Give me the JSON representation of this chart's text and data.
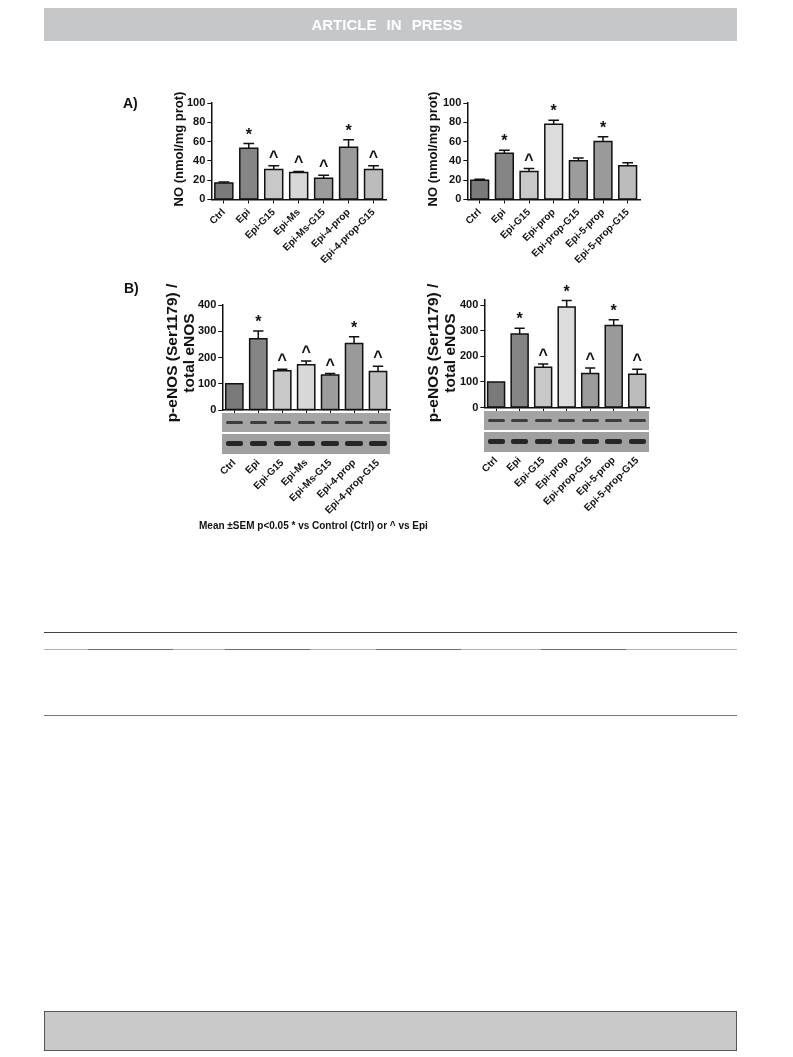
{
  "chart_data": [
    {
      "type": "bar",
      "title": "A)",
      "ylabel": "NO (nmol/mg prot)",
      "categories": [
        "Ctrl",
        "Epi",
        "Epi-G15",
        "Epi-Ms",
        "Epi-Ms-G15",
        "Epi-4-prop",
        "Epi-4-prop-G15"
      ],
      "values": [
        17,
        53,
        31,
        28,
        22,
        54,
        31
      ],
      "errors": [
        1,
        5,
        4,
        1,
        3,
        8,
        4
      ],
      "colors": [
        "#7a7a7a",
        "#858585",
        "#c8c8c8",
        "#d8d8d8",
        "#9c9c9c",
        "#9a9a9a",
        "#bcbcbc"
      ],
      "ylim": [
        0,
        100
      ],
      "yticks": [
        0,
        20,
        40,
        60,
        80,
        100
      ],
      "annotations": [
        "ARTICLE IN PRESS",
        {
          "text": "*",
          "x": "Epi",
          "y": 58
        },
        {
          "text": "^",
          "x": "Epi-G15",
          "y": 35
        },
        {
          "text": "^",
          "x": "Epi-Ms",
          "y": 29
        },
        {
          "text": "^",
          "x": "Epi-Ms-G15",
          "y": 25
        },
        {
          "text": "*",
          "x": "Epi-4-prop",
          "y": 62
        },
        {
          "text": "^",
          "x": "Epi-4-prop-G15",
          "y": 35
        }
      ]
    },
    {
      "type": "bar",
      "ylabel": "NO (nmol/mg prot)",
      "categories": [
        "Ctrl",
        "Epi",
        "Epi-G15",
        "Epi-prop",
        "Epi-prop-G15",
        "Epi-5-prop",
        "Epi-5-prop-G15"
      ],
      "values": [
        20,
        48,
        29,
        78,
        40,
        60,
        35
      ],
      "errors": [
        1,
        3,
        3,
        4,
        3,
        5,
        3
      ],
      "colors": [
        "#7a7a7a",
        "#858585",
        "#c8c8c8",
        "#dcdcdc",
        "#9c9c9c",
        "#9a9a9a",
        "#bcbcbc"
      ],
      "ylim": [
        0,
        100
      ],
      "yticks": [
        0,
        20,
        40,
        60,
        80,
        100
      ],
      "annotations": [
        {
          "text": "*",
          "x": "Epi",
          "y": 51
        },
        {
          "text": "^",
          "x": "Epi-G15",
          "y": 32
        },
        {
          "text": "*",
          "x": "Epi-prop",
          "y": 82
        },
        {
          "text": "*",
          "x": "Epi-5-prop",
          "y": 65
        }
      ]
    },
    {
      "type": "bar",
      "title": "B)",
      "ylabel": "p-eNOS (Ser1179) / total eNOS",
      "categories": [
        "Ctrl",
        "Epi",
        "Epi-G15",
        "Epi-Ms",
        "Epi-Ms-G15",
        "Epi-4-prop",
        "Epi-4-prop-G15"
      ],
      "values": [
        100,
        271,
        150,
        172,
        133,
        253,
        147
      ],
      "errors": [
        null,
        30,
        5,
        15,
        6,
        26,
        20
      ],
      "colors": [
        "#7a7a7a",
        "#858585",
        "#c8c8c8",
        "#d8d8d8",
        "#9c9c9c",
        "#9a9a9a",
        "#bcbcbc"
      ],
      "ylim": [
        0,
        400
      ],
      "yticks": [
        0,
        100,
        200,
        300,
        400
      ],
      "annotations": [
        "Mean ±SEM p<0.05 * vs Control (Ctrl) or ^ vs Epi",
        {
          "text": "*",
          "x": "Epi",
          "y": 301
        },
        {
          "text": "^",
          "x": "Epi-G15",
          "y": 155
        },
        {
          "text": "^",
          "x": "Epi-Ms",
          "y": 187
        },
        {
          "text": "^",
          "x": "Epi-Ms-G15",
          "y": 139
        },
        {
          "text": "*",
          "x": "Epi-4-prop",
          "y": 279
        },
        {
          "text": "^",
          "x": "Epi-4-prop-G15",
          "y": 167
        }
      ]
    },
    {
      "type": "bar",
      "ylabel": "p-eNOS (Ser1179) / total eNOS",
      "categories": [
        "Ctrl",
        "Epi",
        "Epi-G15",
        "Epi-prop",
        "Epi-prop-G15",
        "Epi-5-prop",
        "Epi-5-prop-G15"
      ],
      "values": [
        100,
        287,
        157,
        393,
        133,
        320,
        130
      ],
      "errors": [
        null,
        23,
        13,
        25,
        21,
        23,
        19
      ],
      "colors": [
        "#7a7a7a",
        "#858585",
        "#c8c8c8",
        "#dcdcdc",
        "#9c9c9c",
        "#9a9a9a",
        "#bcbcbc"
      ],
      "ylim": [
        0,
        420
      ],
      "yticks": [
        0,
        100,
        200,
        300,
        400
      ],
      "annotations": [
        {
          "text": "*",
          "x": "Epi",
          "y": 310
        },
        {
          "text": "^",
          "x": "Epi-G15",
          "y": 170
        },
        {
          "text": "*",
          "x": "Epi-prop",
          "y": 418
        },
        {
          "text": "^",
          "x": "Epi-prop-G15",
          "y": 154
        },
        {
          "text": "*",
          "x": "Epi-5-prop",
          "y": 343
        },
        {
          "text": "^",
          "x": "Epi-5-prop-G15",
          "y": 149
        }
      ]
    }
  ]
}
